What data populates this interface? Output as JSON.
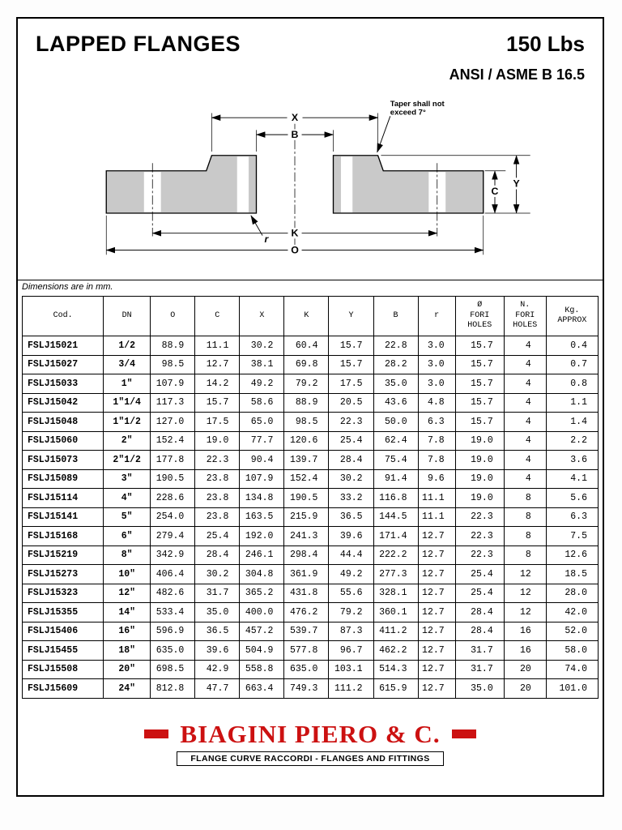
{
  "header": {
    "title": "LAPPED FLANGES",
    "pressure_class": "150 Lbs",
    "standard": "ANSI / ASME B 16.5"
  },
  "drawing": {
    "taper_note_line1": "Taper shall not",
    "taper_note_line2": "exceed  7°",
    "dim_x": "X",
    "dim_b": "B",
    "dim_y": "Y",
    "dim_c": "C",
    "dim_r": "r",
    "dim_k": "K",
    "dim_o": "O"
  },
  "note": "Dimensions are in mm.",
  "table": {
    "headers": [
      "Cod.",
      "DN",
      "O",
      "C",
      "X",
      "K",
      "Y",
      "B",
      "r",
      "Ø\nFORI\nHOLES",
      "N.\nFORI\nHOLES",
      "Kg.\nAPPROX"
    ],
    "rows": [
      [
        "FSLJ15021",
        "1/2",
        "88.9",
        "11.1",
        "30.2",
        "60.4",
        "15.7",
        "22.8",
        "3.0",
        "15.7",
        "4",
        "0.4"
      ],
      [
        "FSLJ15027",
        "3/4",
        "98.5",
        "12.7",
        "38.1",
        "69.8",
        "15.7",
        "28.2",
        "3.0",
        "15.7",
        "4",
        "0.7"
      ],
      [
        "FSLJ15033",
        "1\"",
        "107.9",
        "14.2",
        "49.2",
        "79.2",
        "17.5",
        "35.0",
        "3.0",
        "15.7",
        "4",
        "0.8"
      ],
      [
        "FSLJ15042",
        "1\"1/4",
        "117.3",
        "15.7",
        "58.6",
        "88.9",
        "20.5",
        "43.6",
        "4.8",
        "15.7",
        "4",
        "1.1"
      ],
      [
        "FSLJ15048",
        "1\"1/2",
        "127.0",
        "17.5",
        "65.0",
        "98.5",
        "22.3",
        "50.0",
        "6.3",
        "15.7",
        "4",
        "1.4"
      ],
      [
        "FSLJ15060",
        "2\"",
        "152.4",
        "19.0",
        "77.7",
        "120.6",
        "25.4",
        "62.4",
        "7.8",
        "19.0",
        "4",
        "2.2"
      ],
      [
        "FSLJ15073",
        "2\"1/2",
        "177.8",
        "22.3",
        "90.4",
        "139.7",
        "28.4",
        "75.4",
        "7.8",
        "19.0",
        "4",
        "3.6"
      ],
      [
        "FSLJ15089",
        "3\"",
        "190.5",
        "23.8",
        "107.9",
        "152.4",
        "30.2",
        "91.4",
        "9.6",
        "19.0",
        "4",
        "4.1"
      ],
      [
        "FSLJ15114",
        "4\"",
        "228.6",
        "23.8",
        "134.8",
        "190.5",
        "33.2",
        "116.8",
        "11.1",
        "19.0",
        "8",
        "5.6"
      ],
      [
        "FSLJ15141",
        "5\"",
        "254.0",
        "23.8",
        "163.5",
        "215.9",
        "36.5",
        "144.5",
        "11.1",
        "22.3",
        "8",
        "6.3"
      ],
      [
        "FSLJ15168",
        "6\"",
        "279.4",
        "25.4",
        "192.0",
        "241.3",
        "39.6",
        "171.4",
        "12.7",
        "22.3",
        "8",
        "7.5"
      ],
      [
        "FSLJ15219",
        "8\"",
        "342.9",
        "28.4",
        "246.1",
        "298.4",
        "44.4",
        "222.2",
        "12.7",
        "22.3",
        "8",
        "12.6"
      ],
      [
        "FSLJ15273",
        "10\"",
        "406.4",
        "30.2",
        "304.8",
        "361.9",
        "49.2",
        "277.3",
        "12.7",
        "25.4",
        "12",
        "18.5"
      ],
      [
        "FSLJ15323",
        "12\"",
        "482.6",
        "31.7",
        "365.2",
        "431.8",
        "55.6",
        "328.1",
        "12.7",
        "25.4",
        "12",
        "28.0"
      ],
      [
        "FSLJ15355",
        "14\"",
        "533.4",
        "35.0",
        "400.0",
        "476.2",
        "79.2",
        "360.1",
        "12.7",
        "28.4",
        "12",
        "42.0"
      ],
      [
        "FSLJ15406",
        "16\"",
        "596.9",
        "36.5",
        "457.2",
        "539.7",
        "87.3",
        "411.2",
        "12.7",
        "28.4",
        "16",
        "52.0"
      ],
      [
        "FSLJ15455",
        "18\"",
        "635.0",
        "39.6",
        "504.9",
        "577.8",
        "96.7",
        "462.2",
        "12.7",
        "31.7",
        "16",
        "58.0"
      ],
      [
        "FSLJ15508",
        "20\"",
        "698.5",
        "42.9",
        "558.8",
        "635.0",
        "103.1",
        "514.3",
        "12.7",
        "31.7",
        "20",
        "74.0"
      ],
      [
        "FSLJ15609",
        "24\"",
        "812.8",
        "47.7",
        "663.4",
        "749.3",
        "111.2",
        "615.9",
        "12.7",
        "35.0",
        "20",
        "101.0"
      ]
    ]
  },
  "footer": {
    "brand": "BIAGINI PIERO & C.",
    "tagline": "FLANGE CURVE RACCORDI  -  FLANGES AND FITTINGS",
    "accent_color": "#cc1111"
  }
}
